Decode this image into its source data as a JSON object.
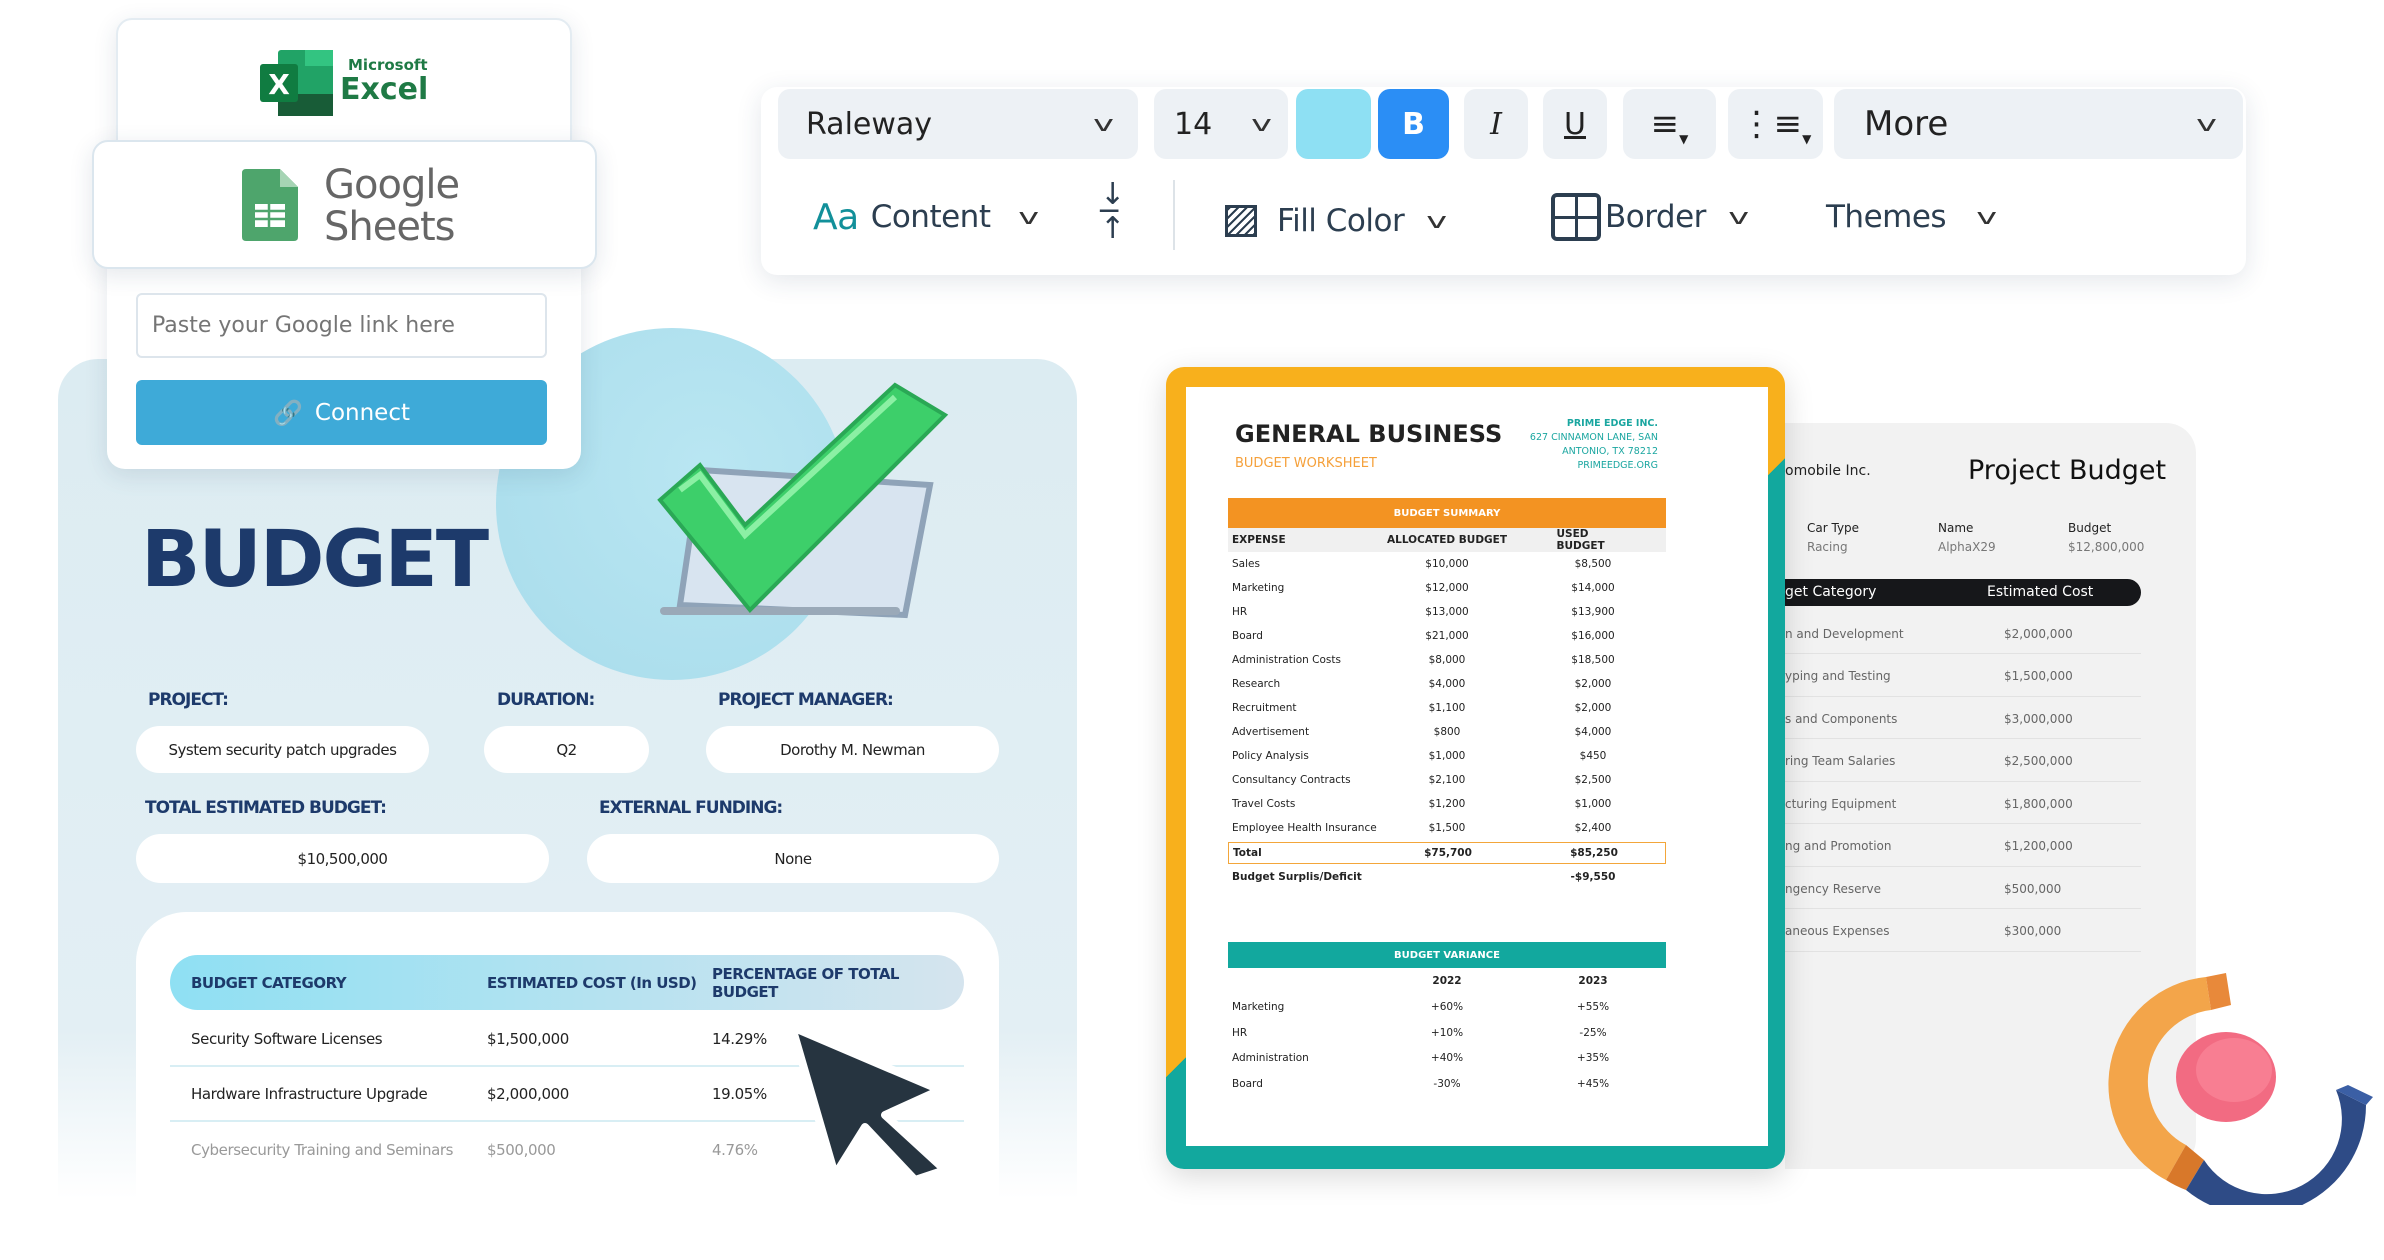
{
  "import": {
    "excel_logo": {
      "line1": "Microsoft",
      "line2": "Excel"
    },
    "sheets_logo": {
      "line1": "Google",
      "line2": "Sheets"
    },
    "link_placeholder": "Paste your Google link here",
    "connect_label": "Connect"
  },
  "toolbar": {
    "font": "Raleway",
    "size": "14",
    "swatch_color": "#8ee0f3",
    "bold": "B",
    "italic": "I",
    "underline": "U",
    "more": "More",
    "content": "Content",
    "content_icon": "Aa",
    "fill_color": "Fill Color",
    "border": "Border",
    "themes": "Themes"
  },
  "budget": {
    "title": "BUDGET",
    "project_label": "PROJECT:",
    "project": "System security patch upgrades",
    "duration_label": "DURATION:",
    "duration": "Q2",
    "manager_label": "PROJECT MANAGER:",
    "manager": "Dorothy M. Newman",
    "total_label": "TOTAL ESTIMATED BUDGET:",
    "total": "$10,500,000",
    "funding_label": "EXTERNAL FUNDING:",
    "funding": "None",
    "columns": [
      "BUDGET CATEGORY",
      "ESTIMATED COST (In USD)",
      "PERCENTAGE OF TOTAL BUDGET"
    ],
    "rows": [
      [
        "Security Software Licenses",
        "$1,500,000",
        "14.29%"
      ],
      [
        "Hardware Infrastructure Upgrade",
        "$2,000,000",
        "19.05%"
      ],
      [
        "Cybersecurity Training and Seminars",
        "$500,000",
        "4.76%"
      ]
    ]
  },
  "worksheet": {
    "title": "GENERAL BUSINESS",
    "subtitle": "BUDGET WORKSHEET",
    "company": "PRIME EDGE INC.",
    "address1": "627 CINNAMON LANE, SAN",
    "address2": "ANTONIO, TX 78212",
    "website": "PRIMEEDGE.ORG",
    "summary_header": "BUDGET SUMMARY",
    "columns": [
      "EXPENSE",
      "ALLOCATED BUDGET",
      "USED BUDGET"
    ],
    "rows": [
      [
        "Sales",
        "$10,000",
        "$8,500"
      ],
      [
        "Marketing",
        "$12,000",
        "$14,000"
      ],
      [
        "HR",
        "$13,000",
        "$13,900"
      ],
      [
        "Board",
        "$21,000",
        "$16,000"
      ],
      [
        "Administration Costs",
        "$8,000",
        "$18,500"
      ],
      [
        "Research",
        "$4,000",
        "$2,000"
      ],
      [
        "Recruitment",
        "$1,100",
        "$2,000"
      ],
      [
        "Advertisement",
        "$800",
        "$4,000"
      ],
      [
        "Policy Analysis",
        "$1,000",
        "$450"
      ],
      [
        "Consultancy Contracts",
        "$2,100",
        "$2,500"
      ],
      [
        "Travel Costs",
        "$1,200",
        "$1,000"
      ],
      [
        "Employee Health Insurance",
        "$1,500",
        "$2,400"
      ]
    ],
    "total": [
      "Total",
      "$75,700",
      "$85,250"
    ],
    "surplus": [
      "Budget Surplis/Deficit",
      "-$9,550"
    ],
    "variance_header": "BUDGET VARIANCE",
    "variance_years": [
      "2022",
      "2023"
    ],
    "variance_rows": [
      [
        "Marketing",
        "+60%",
        "+55%"
      ],
      [
        "HR",
        "+10%",
        "-25%"
      ],
      [
        "Administration",
        "+40%",
        "+35%"
      ],
      [
        "Board",
        "-30%",
        "+45%"
      ]
    ]
  },
  "project_budget": {
    "company": "omobile Inc.",
    "title": "Project Budget",
    "fields": [
      {
        "label": "Car Type",
        "value": "Racing"
      },
      {
        "label": "Name",
        "value": "AlphaX29"
      },
      {
        "label": "Budget",
        "value": "$12,800,000"
      }
    ],
    "columns": [
      "get Category",
      "Estimated Cost"
    ],
    "rows": [
      [
        "n and Development",
        "$2,000,000"
      ],
      [
        "yping and Testing",
        "$1,500,000"
      ],
      [
        "s and Components",
        "$3,000,000"
      ],
      [
        "ring Team Salaries",
        "$2,500,000"
      ],
      [
        "cturing Equipment",
        "$1,800,000"
      ],
      [
        "ng and Promotion",
        "$1,200,000"
      ],
      [
        "ngency Reserve",
        "$500,000"
      ],
      [
        "aneous Expenses",
        "$300,000"
      ]
    ]
  }
}
